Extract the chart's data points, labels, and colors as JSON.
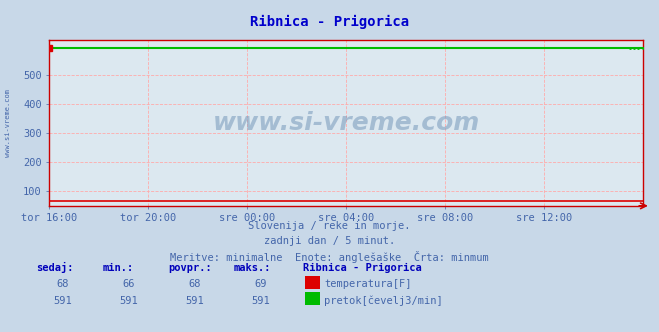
{
  "title": "Ribnica - Prigorica",
  "title_color": "#0000cc",
  "fig_bg_color": "#c8d8e8",
  "plot_bg_color": "#dce8f0",
  "grid_color": "#ffaaaa",
  "watermark_text": "www.si-vreme.com",
  "watermark_color": "#7799bb",
  "ylim": [
    50,
    620
  ],
  "xlim": [
    0,
    288
  ],
  "yticks": [
    100,
    200,
    300,
    400,
    500
  ],
  "xtick_labels": [
    "tor 16:00",
    "tor 20:00",
    "sre 00:00",
    "sre 04:00",
    "sre 08:00",
    "sre 12:00"
  ],
  "xtick_positions": [
    0,
    48,
    96,
    144,
    192,
    240
  ],
  "temp_value": 68,
  "temp_min": 66,
  "temp_povpr": 68,
  "temp_max": 69,
  "flow_value": 591,
  "flow_min": 591,
  "flow_povpr": 591,
  "flow_max": 591,
  "temp_color": "#dd0000",
  "flow_color": "#00bb00",
  "tick_color": "#4466aa",
  "subtitle1": "Slovenija / reke in morje.",
  "subtitle2": "zadnji dan / 5 minut.",
  "subtitle3": "Meritve: minimalne  Enote: anglešaške  Črta: minmum",
  "subtitle_color": "#4466aa",
  "table_header_color": "#0000bb",
  "table_value_color": "#4466aa",
  "legend_title": "Ribnica - Prigorica",
  "legend_temp_label": "temperatura[F]",
  "legend_flow_label": "pretok[čevelj3/min]",
  "side_text": "www.si-vreme.com",
  "side_text_color": "#4466aa",
  "spine_color": "#cc0000",
  "arrow_color": "#cc0000"
}
